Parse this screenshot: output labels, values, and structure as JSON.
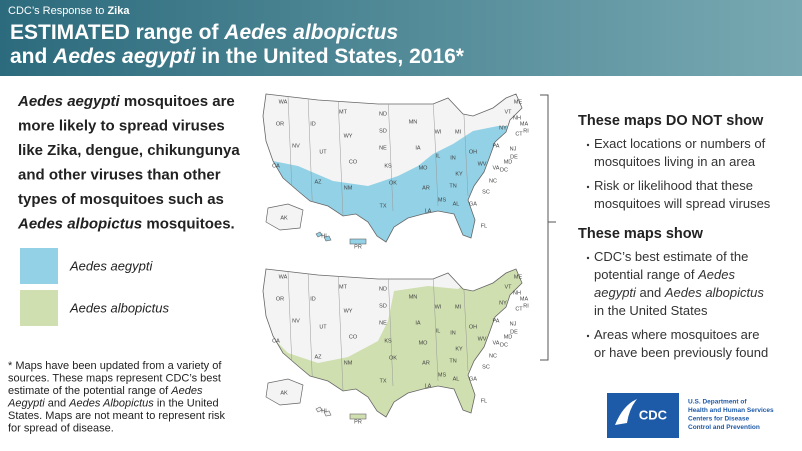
{
  "header": {
    "kicker": [
      {
        "text": "CDC’s Response to "
      },
      {
        "text": "Zika",
        "bold": true
      }
    ],
    "title_lines": [
      [
        {
          "text": "ESTIMATED range of "
        },
        {
          "text": "Aedes albopictus",
          "italic": true
        }
      ],
      [
        {
          "text": "and "
        },
        {
          "text": "Aedes aegypti",
          "italic": true
        },
        {
          "text": " in the United States, 2016*"
        }
      ]
    ]
  },
  "intro": {
    "lines": [
      [
        {
          "text": "Aedes aegypti",
          "italic": true
        },
        {
          "text": " mosquitoes are"
        }
      ],
      [
        {
          "text": "more likely to spread viruses"
        }
      ],
      [
        {
          "text": "like Zika, dengue, chikungunya"
        }
      ],
      [
        {
          "text": "and other viruses than other"
        }
      ],
      [
        {
          "text": "types of mosquitoes such as"
        }
      ],
      [
        {
          "text": "Aedes albopictus",
          "italic": true
        },
        {
          "text": " mosquitoes."
        }
      ]
    ]
  },
  "legend": [
    {
      "label": "Aedes aegypti",
      "color": "#92d1e6"
    },
    {
      "label": "Aedes albopictus",
      "color": "#cfdfb0"
    }
  ],
  "footnote": {
    "lines": [
      [
        {
          "text": "* Maps have been updated from a variety of"
        }
      ],
      [
        {
          "text": "sources. These maps represent CDC’s best"
        }
      ],
      [
        {
          "text": "estimate of the potential range of "
        },
        {
          "text": "Aedes",
          "italic": true
        }
      ],
      [
        {
          "text": "Aegypti",
          "italic": true
        },
        {
          "text": " and "
        },
        {
          "text": "Aedes Albopictus",
          "italic": true
        },
        {
          "text": " in the United"
        }
      ],
      [
        {
          "text": "States. Maps are not meant to represent risk"
        }
      ],
      [
        {
          "text": "for spread of disease."
        }
      ]
    ]
  },
  "maps": [
    {
      "color": "#92d1e6",
      "state_labels": [
        "WA",
        "OR",
        "CA",
        "NV",
        "ID",
        "MT",
        "WY",
        "UT",
        "AZ",
        "CO",
        "NM",
        "ND",
        "SD",
        "NE",
        "KS",
        "OK",
        "TX",
        "MN",
        "IA",
        "MO",
        "AR",
        "LA",
        "WI",
        "IL",
        "MS",
        "MI",
        "IN",
        "KY",
        "TN",
        "AL",
        "OH",
        "GA",
        "FL",
        "SC",
        "NC",
        "VA",
        "WV",
        "PA",
        "NY",
        "VT",
        "NH",
        "ME",
        "MA",
        "CT",
        "RI",
        "NJ",
        "DE",
        "MD",
        "DC",
        "AK",
        "HI",
        "PR"
      ]
    },
    {
      "color": "#cfdfb0",
      "state_labels": [
        "WA",
        "OR",
        "CA",
        "NV",
        "ID",
        "MT",
        "WY",
        "UT",
        "AZ",
        "CO",
        "NM",
        "ND",
        "SD",
        "NE",
        "KS",
        "OK",
        "TX",
        "MN",
        "IA",
        "MO",
        "AR",
        "LA",
        "WI",
        "IL",
        "MS",
        "MI",
        "IN",
        "KY",
        "TN",
        "AL",
        "OH",
        "GA",
        "FL",
        "SC",
        "NC",
        "VA",
        "WV",
        "PA",
        "NY",
        "VT",
        "NH",
        "ME",
        "MA",
        "CT",
        "RI",
        "NJ",
        "DE",
        "MD",
        "DC",
        "AK",
        "HI",
        "PR"
      ]
    }
  ],
  "panel": {
    "sections": [
      {
        "heading": "These maps DO NOT show",
        "bullets": [
          {
            "lines": [
              [
                {
                  "text": "Exact locations or numbers of"
                }
              ],
              [
                {
                  "text": "mosquitoes living in an area"
                }
              ]
            ]
          },
          {
            "lines": [
              [
                {
                  "text": "Risk or likelihood that these"
                }
              ],
              [
                {
                  "text": "mosquitoes will spread viruses"
                }
              ]
            ]
          }
        ]
      },
      {
        "heading": "These maps show",
        "bullets": [
          {
            "lines": [
              [
                {
                  "text": "CDC’s best estimate of the"
                }
              ],
              [
                {
                  "text": "potential range of "
                },
                {
                  "text": "Aedes",
                  "italic": true
                }
              ],
              [
                {
                  "text": "aegypti",
                  "italic": true
                },
                {
                  "text": " and "
                },
                {
                  "text": "Aedes albopictus",
                  "italic": true
                }
              ],
              [
                {
                  "text": "in the United States"
                }
              ]
            ]
          },
          {
            "lines": [
              [
                {
                  "text": "Areas where mosquitoes are"
                }
              ],
              [
                {
                  "text": "or have been previously found"
                }
              ]
            ]
          }
        ]
      }
    ]
  },
  "logo": {
    "badge": "CDC",
    "lines": [
      "U.S. Department of",
      "Health and Human Services",
      "Centers for Disease",
      "Control and Prevention"
    ]
  }
}
